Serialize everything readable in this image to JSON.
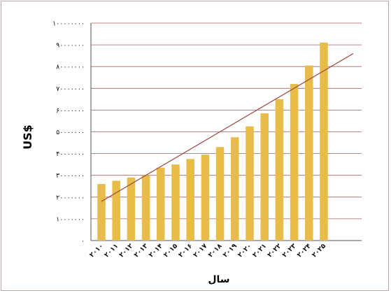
{
  "chart_data": {
    "type": "bar",
    "xlabel": "سال",
    "ylabel": "US$",
    "ylim": [
      0,
      100000000
    ],
    "y_ticks": [
      0,
      10000000,
      20000000,
      30000000,
      40000000,
      50000000,
      60000000,
      70000000,
      80000000,
      90000000,
      100000000
    ],
    "y_tick_labels": [
      "۰",
      "۱۰۰۰۰۰۰۰",
      "۲۰۰۰۰۰۰۰",
      "۳۰۰۰۰۰۰۰",
      "۴۰۰۰۰۰۰۰",
      "۵۰۰۰۰۰۰۰",
      "۶۰۰۰۰۰۰۰",
      "۷۰۰۰۰۰۰۰",
      "۸۰۰۰۰۰۰۰",
      "۹۰۰۰۰۰۰۰",
      "۱۰۰۰۰۰۰۰۰"
    ],
    "categories": [
      "۲۰۱۰",
      "۲۰۱۱",
      "۲۰۱۲",
      "۲۰۱۳",
      "۲۰۱۴",
      "۲۰۱۵",
      "۲۰۱۶",
      "۲۰۱۷",
      "۲۰۱۸",
      "۲۰۱۹",
      "۲۰۲۰",
      "۲۰۲۱",
      "۲۰۲۲",
      "۲۰۲۳",
      "۲۰۲۴",
      "۲۰۲۵"
    ],
    "values": [
      26000000,
      27500000,
      29000000,
      30000000,
      33500000,
      35000000,
      37500000,
      39500000,
      43000000,
      47500000,
      52500000,
      58500000,
      65000000,
      72000000,
      80500000,
      91000000
    ],
    "trendline": {
      "type": "linear",
      "start": 18000000,
      "end": 86000000
    },
    "grid": true,
    "colors": {
      "bar": "#E8BC48",
      "trendline": "#A0524A",
      "grid": "#8B2A2A",
      "frame": "#c9a1a1"
    }
  }
}
